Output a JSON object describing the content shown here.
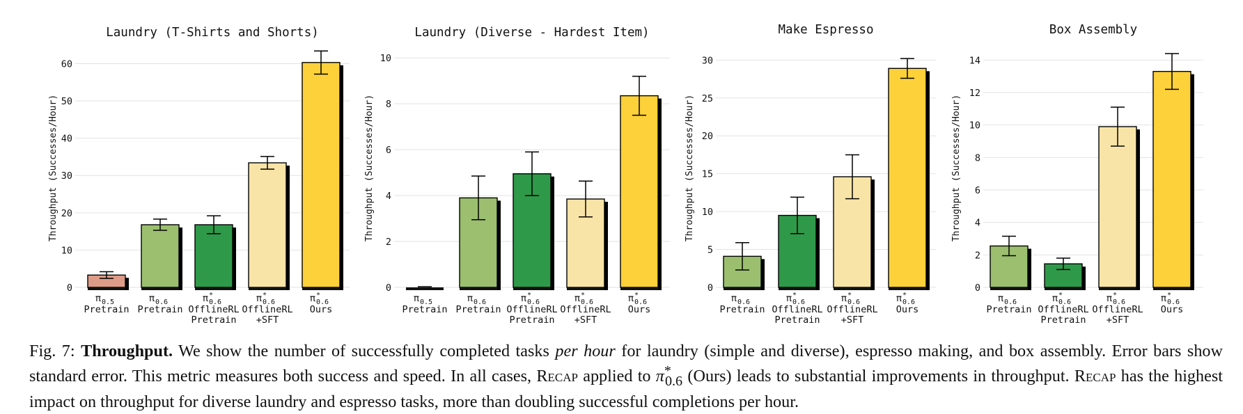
{
  "chart_data": [
    {
      "type": "bar",
      "title": "Laundry (T-Shirts and Shorts)",
      "ylabel": "Throughput (Successes/Hour)",
      "ylim": [
        0,
        64
      ],
      "yticks": [
        0,
        10,
        20,
        30,
        40,
        50,
        60
      ],
      "bars": [
        {
          "sym": "π",
          "sup": "",
          "sub": "0.5",
          "label": "Pretrain",
          "label2": "",
          "value": 3.3,
          "err": 0.9,
          "color": "#de9b87"
        },
        {
          "sym": "π",
          "sup": "",
          "sub": "0.6",
          "label": "Pretrain",
          "label2": "",
          "value": 16.8,
          "err": 1.5,
          "color": "#9bbf6e"
        },
        {
          "sym": "π",
          "sup": "*",
          "sub": "0.6",
          "label": "OfflineRL",
          "label2": "Pretrain",
          "value": 16.8,
          "err": 2.4,
          "color": "#2f994a"
        },
        {
          "sym": "π",
          "sup": "*",
          "sub": "0.6",
          "label": "OfflineRL",
          "label2": "+SFT",
          "value": 33.4,
          "err": 1.7,
          "color": "#f9e4a7"
        },
        {
          "sym": "π",
          "sup": "*",
          "sub": "0.6",
          "label": "Ours",
          "label2": "",
          "value": 60.3,
          "err": 3.1,
          "color": "#fdd13a"
        }
      ]
    },
    {
      "type": "bar",
      "title": "Laundry (Diverse - Hardest Item)",
      "ylabel": "Throughput (Successes/Hour)",
      "ylim": [
        0,
        10.4
      ],
      "yticks": [
        0,
        2,
        4,
        6,
        8,
        10
      ],
      "bars": [
        {
          "sym": "π",
          "sup": "",
          "sub": "0.5",
          "label": "Pretrain",
          "label2": "",
          "value": 0,
          "err": 0,
          "color": "#de9b87"
        },
        {
          "sym": "π",
          "sup": "",
          "sub": "0.6",
          "label": "Pretrain",
          "label2": "",
          "value": 3.9,
          "err": 0.95,
          "color": "#9bbf6e"
        },
        {
          "sym": "π",
          "sup": "*",
          "sub": "0.6",
          "label": "OfflineRL",
          "label2": "Pretrain",
          "value": 4.95,
          "err": 0.95,
          "color": "#2f994a"
        },
        {
          "sym": "π",
          "sup": "*",
          "sub": "0.6",
          "label": "OfflineRL",
          "label2": "+SFT",
          "value": 3.85,
          "err": 0.78,
          "color": "#f9e4a7"
        },
        {
          "sym": "π",
          "sup": "*",
          "sub": "0.6",
          "label": "Ours",
          "label2": "",
          "value": 8.35,
          "err": 0.85,
          "color": "#fdd13a"
        }
      ]
    },
    {
      "type": "bar",
      "title": "Make Espresso",
      "ylabel": "Throughput (Successes/Hour)",
      "ylim": [
        0,
        31.5
      ],
      "yticks": [
        0,
        5,
        10,
        15,
        20,
        25,
        30
      ],
      "bars": [
        {
          "sym": "π",
          "sup": "",
          "sub": "0.6",
          "label": "Pretrain",
          "label2": "",
          "value": 4.1,
          "err": 1.8,
          "color": "#9bbf6e"
        },
        {
          "sym": "π",
          "sup": "*",
          "sub": "0.6",
          "label": "OfflineRL",
          "label2": "Pretrain",
          "value": 9.5,
          "err": 2.4,
          "color": "#2f994a"
        },
        {
          "sym": "π",
          "sup": "*",
          "sub": "0.6",
          "label": "OfflineRL",
          "label2": "+SFT",
          "value": 14.6,
          "err": 2.9,
          "color": "#f9e4a7"
        },
        {
          "sym": "π",
          "sup": "*",
          "sub": "0.6",
          "label": "Ours",
          "label2": "",
          "value": 28.9,
          "err": 1.3,
          "color": "#fdd13a"
        }
      ]
    },
    {
      "type": "bar",
      "title": "Box Assembly",
      "ylabel": "Throughput (Successes/Hour)",
      "ylim": [
        0,
        14.7
      ],
      "yticks": [
        0,
        2,
        4,
        6,
        8,
        10,
        12,
        14
      ],
      "bars": [
        {
          "sym": "π",
          "sup": "",
          "sub": "0.6",
          "label": "Pretrain",
          "label2": "",
          "value": 2.55,
          "err": 0.6,
          "color": "#9bbf6e"
        },
        {
          "sym": "π",
          "sup": "*",
          "sub": "0.6",
          "label": "OfflineRL",
          "label2": "Pretrain",
          "value": 1.45,
          "err": 0.35,
          "color": "#2f994a"
        },
        {
          "sym": "π",
          "sup": "*",
          "sub": "0.6",
          "label": "OfflineRL",
          "label2": "+SFT",
          "value": 9.9,
          "err": 1.2,
          "color": "#f9e4a7"
        },
        {
          "sym": "π",
          "sup": "*",
          "sub": "0.6",
          "label": "Ours",
          "label2": "",
          "value": 13.3,
          "err": 1.1,
          "color": "#fdd13a"
        }
      ]
    }
  ],
  "caption": {
    "fig": "Fig. 7:",
    "bold": "Throughput.",
    "t1": "We show the number of successfully completed tasks",
    "italic": "per hour",
    "t2": "for laundry (simple and diverse), espresso making, and box assembly. Error bars show standard error. This metric measures both success and speed. In all cases,",
    "recap1": "Recap",
    "t3": "applied to",
    "pi": "π",
    "pi_sup": "*",
    "pi_sub": "0.6",
    "t4": "(Ours) leads to substantial improvements in throughput.",
    "recap2": "Recap",
    "t5": "has the highest impact on throughput for diverse laundry and espresso tasks, more than doubling successful completions per hour."
  }
}
